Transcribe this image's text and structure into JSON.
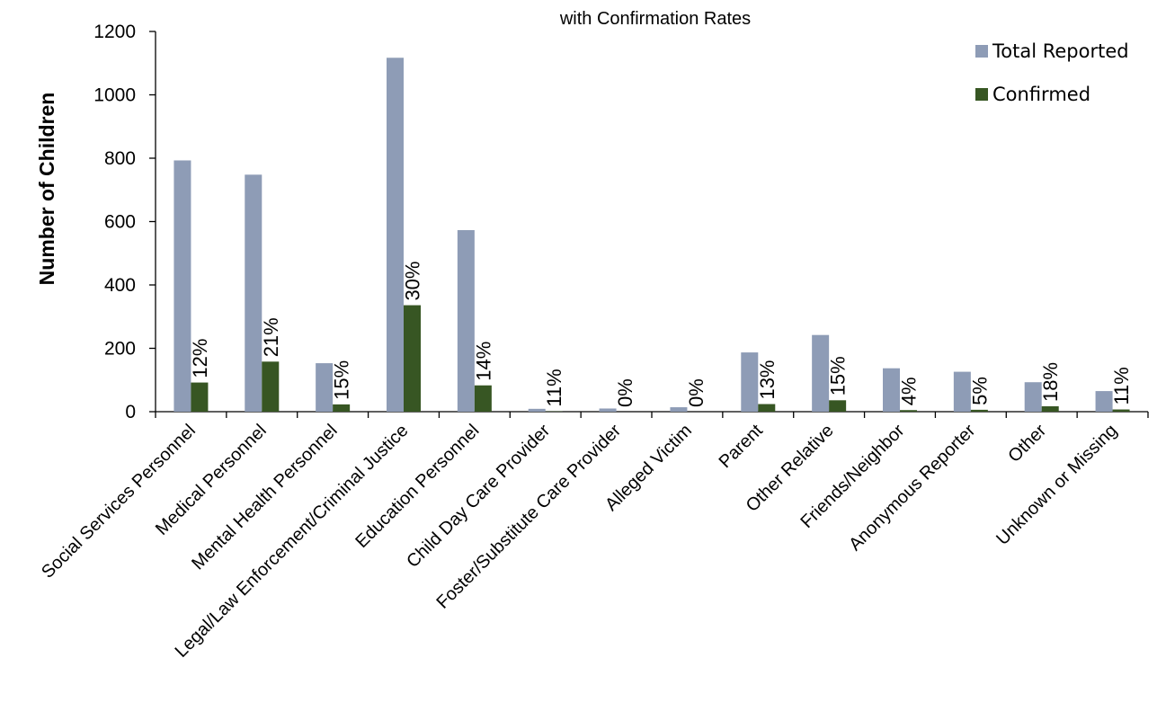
{
  "chart_data": {
    "type": "bar",
    "title": "with Confirmation Rates",
    "ylabel": "Number of Children",
    "xlabel": "",
    "ylim": [
      0,
      1200
    ],
    "yticks": [
      "0",
      "200",
      "400",
      "600",
      "800",
      "1000",
      "1200"
    ],
    "grid": false,
    "legend_position": "top-right",
    "categories": [
      "Social Services Personnel",
      "Medical Personnel",
      "Mental Health Personnel",
      "Legal/Law Enforcement/Criminal Justice",
      "Education Personnel",
      "Child Day Care Provider",
      "Foster/Substitute Care Provider",
      "Alleged Victim",
      "Parent",
      "Other Relative",
      "Friends/Neighbor",
      "Anonymous Reporter",
      "Other",
      "Unknown or Missing"
    ],
    "series": [
      {
        "name": "Total Reported",
        "color": "#8e9cb6",
        "values": [
          793,
          748,
          153,
          1117,
          573,
          9,
          10,
          14,
          187,
          242,
          137,
          126,
          93,
          65
        ]
      },
      {
        "name": "Confirmed",
        "color": "#375623",
        "values": [
          92,
          158,
          23,
          336,
          83,
          1,
          0,
          0,
          24,
          36,
          5,
          6,
          17,
          7
        ]
      }
    ],
    "confirmation_rates": [
      "12%",
      "21%",
      "15%",
      "30%",
      "14%",
      "11%",
      "0%",
      "0%",
      "13%",
      "15%",
      "4%",
      "5%",
      "18%",
      "11%"
    ]
  }
}
